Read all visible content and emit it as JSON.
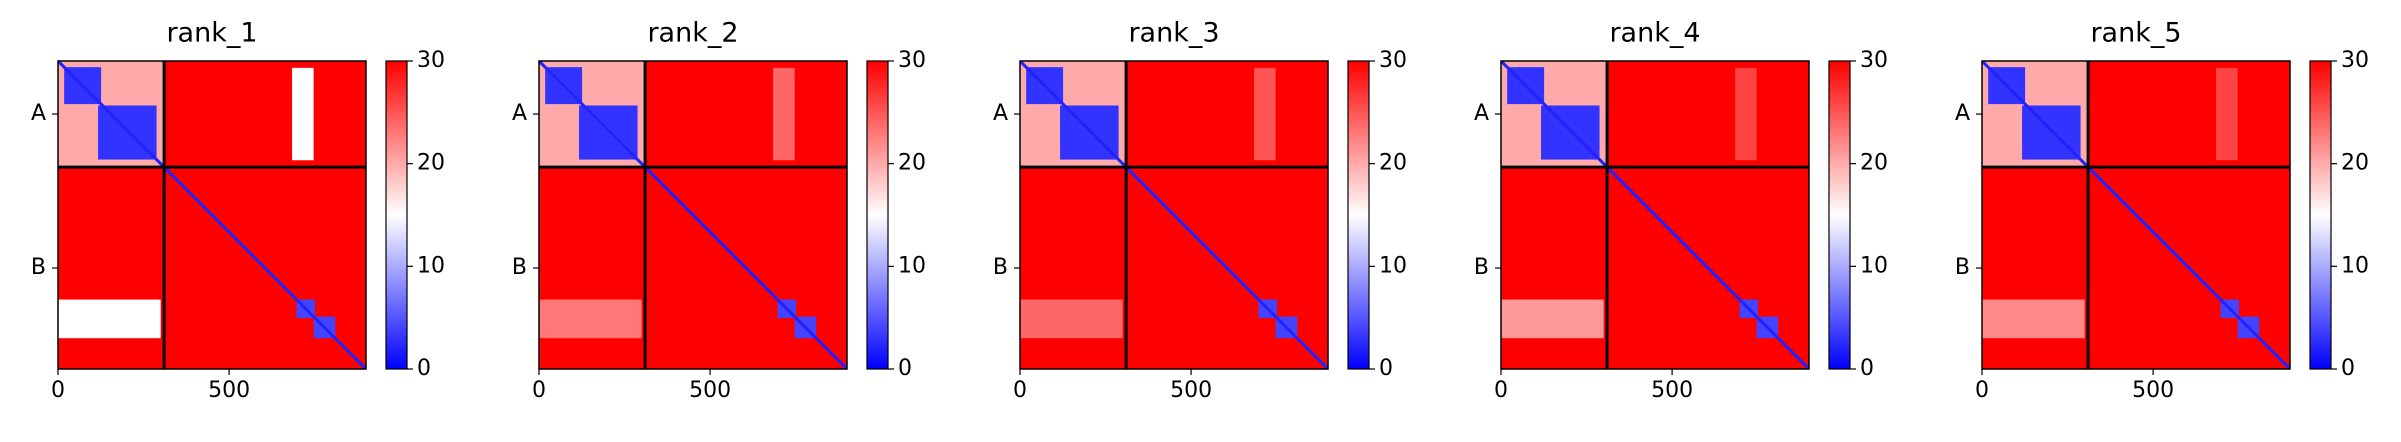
{
  "chart_data": [
    {
      "type": "heatmap",
      "title": "rank_1",
      "xlim": [
        0,
        900
      ],
      "ylim": [
        0,
        900
      ],
      "xticks": [
        0,
        500
      ],
      "yticks": [
        {
          "value": 155,
          "label": "A"
        },
        {
          "value": 605,
          "label": "B"
        }
      ],
      "vlim": [
        0,
        30
      ],
      "cticks": [
        0,
        10,
        20,
        30
      ],
      "cmap": [
        "#0000ff",
        "#ffffff",
        "#ff0000"
      ],
      "background": 30,
      "boundaries": [
        310
      ],
      "diagonal": 2,
      "regions": [
        {
          "x": [
            0,
            310
          ],
          "y": [
            0,
            310
          ],
          "value": 20
        },
        {
          "x": [
            18,
            126
          ],
          "y": [
            18,
            126
          ],
          "value": 3
        },
        {
          "x": [
            117,
            288
          ],
          "y": [
            130,
            288
          ],
          "value": 3
        },
        {
          "x": [
            684,
            747
          ],
          "y": [
            20,
            290
          ],
          "value": 15
        },
        {
          "x": [
            0,
            300
          ],
          "y": [
            697,
            810
          ],
          "value": 15
        },
        {
          "x": [
            697,
            751
          ],
          "y": [
            697,
            751
          ],
          "value": 4
        },
        {
          "x": [
            747,
            810
          ],
          "y": [
            747,
            810
          ],
          "value": 4
        }
      ]
    },
    {
      "type": "heatmap",
      "title": "rank_2",
      "xlim": [
        0,
        900
      ],
      "ylim": [
        0,
        900
      ],
      "xticks": [
        0,
        500
      ],
      "yticks": [
        {
          "value": 155,
          "label": "A"
        },
        {
          "value": 605,
          "label": "B"
        }
      ],
      "vlim": [
        0,
        30
      ],
      "cticks": [
        0,
        10,
        20,
        30
      ],
      "cmap": [
        "#0000ff",
        "#ffffff",
        "#ff0000"
      ],
      "background": 30,
      "boundaries": [
        310
      ],
      "diagonal": 2,
      "regions": [
        {
          "x": [
            0,
            310
          ],
          "y": [
            0,
            310
          ],
          "value": 20
        },
        {
          "x": [
            18,
            126
          ],
          "y": [
            18,
            126
          ],
          "value": 3
        },
        {
          "x": [
            117,
            288
          ],
          "y": [
            130,
            288
          ],
          "value": 3
        },
        {
          "x": [
            684,
            747
          ],
          "y": [
            20,
            290
          ],
          "value": 24
        },
        {
          "x": [
            0,
            300
          ],
          "y": [
            697,
            810
          ],
          "value": 23
        },
        {
          "x": [
            697,
            751
          ],
          "y": [
            697,
            751
          ],
          "value": 4
        },
        {
          "x": [
            747,
            810
          ],
          "y": [
            747,
            810
          ],
          "value": 4
        }
      ]
    },
    {
      "type": "heatmap",
      "title": "rank_3",
      "xlim": [
        0,
        900
      ],
      "ylim": [
        0,
        900
      ],
      "xticks": [
        0,
        500
      ],
      "yticks": [
        {
          "value": 155,
          "label": "A"
        },
        {
          "value": 605,
          "label": "B"
        }
      ],
      "vlim": [
        0,
        30
      ],
      "cticks": [
        0,
        10,
        20,
        30
      ],
      "cmap": [
        "#0000ff",
        "#ffffff",
        "#ff0000"
      ],
      "background": 30,
      "boundaries": [
        310
      ],
      "diagonal": 2,
      "regions": [
        {
          "x": [
            0,
            310
          ],
          "y": [
            0,
            310
          ],
          "value": 20
        },
        {
          "x": [
            18,
            126
          ],
          "y": [
            18,
            126
          ],
          "value": 3
        },
        {
          "x": [
            117,
            288
          ],
          "y": [
            130,
            288
          ],
          "value": 3
        },
        {
          "x": [
            684,
            747
          ],
          "y": [
            20,
            290
          ],
          "value": 25
        },
        {
          "x": [
            0,
            300
          ],
          "y": [
            697,
            810
          ],
          "value": 24
        },
        {
          "x": [
            697,
            751
          ],
          "y": [
            697,
            751
          ],
          "value": 4
        },
        {
          "x": [
            747,
            810
          ],
          "y": [
            747,
            810
          ],
          "value": 4
        }
      ]
    },
    {
      "type": "heatmap",
      "title": "rank_4",
      "xlim": [
        0,
        900
      ],
      "ylim": [
        0,
        900
      ],
      "xticks": [
        0,
        500
      ],
      "yticks": [
        {
          "value": 155,
          "label": "A"
        },
        {
          "value": 605,
          "label": "B"
        }
      ],
      "vlim": [
        0,
        30
      ],
      "cticks": [
        0,
        10,
        20,
        30
      ],
      "cmap": [
        "#0000ff",
        "#ffffff",
        "#ff0000"
      ],
      "background": 30,
      "boundaries": [
        310
      ],
      "diagonal": 2,
      "regions": [
        {
          "x": [
            0,
            310
          ],
          "y": [
            0,
            310
          ],
          "value": 20
        },
        {
          "x": [
            18,
            126
          ],
          "y": [
            18,
            126
          ],
          "value": 3
        },
        {
          "x": [
            117,
            288
          ],
          "y": [
            130,
            288
          ],
          "value": 3
        },
        {
          "x": [
            684,
            747
          ],
          "y": [
            20,
            290
          ],
          "value": 26
        },
        {
          "x": [
            0,
            300
          ],
          "y": [
            697,
            810
          ],
          "value": 21
        },
        {
          "x": [
            697,
            751
          ],
          "y": [
            697,
            751
          ],
          "value": 4
        },
        {
          "x": [
            747,
            810
          ],
          "y": [
            747,
            810
          ],
          "value": 4
        }
      ]
    },
    {
      "type": "heatmap",
      "title": "rank_5",
      "xlim": [
        0,
        900
      ],
      "ylim": [
        0,
        900
      ],
      "xticks": [
        0,
        500
      ],
      "yticks": [
        {
          "value": 155,
          "label": "A"
        },
        {
          "value": 605,
          "label": "B"
        }
      ],
      "vlim": [
        0,
        30
      ],
      "cticks": [
        0,
        10,
        20,
        30
      ],
      "cmap": [
        "#0000ff",
        "#ffffff",
        "#ff0000"
      ],
      "background": 30,
      "boundaries": [
        310
      ],
      "diagonal": 2,
      "regions": [
        {
          "x": [
            0,
            310
          ],
          "y": [
            0,
            310
          ],
          "value": 20
        },
        {
          "x": [
            18,
            126
          ],
          "y": [
            18,
            126
          ],
          "value": 3
        },
        {
          "x": [
            117,
            288
          ],
          "y": [
            130,
            288
          ],
          "value": 3
        },
        {
          "x": [
            684,
            747
          ],
          "y": [
            20,
            290
          ],
          "value": 26
        },
        {
          "x": [
            0,
            300
          ],
          "y": [
            697,
            810
          ],
          "value": 22
        },
        {
          "x": [
            697,
            751
          ],
          "y": [
            697,
            751
          ],
          "value": 4
        },
        {
          "x": [
            747,
            810
          ],
          "y": [
            747,
            810
          ],
          "value": 4
        }
      ]
    }
  ]
}
